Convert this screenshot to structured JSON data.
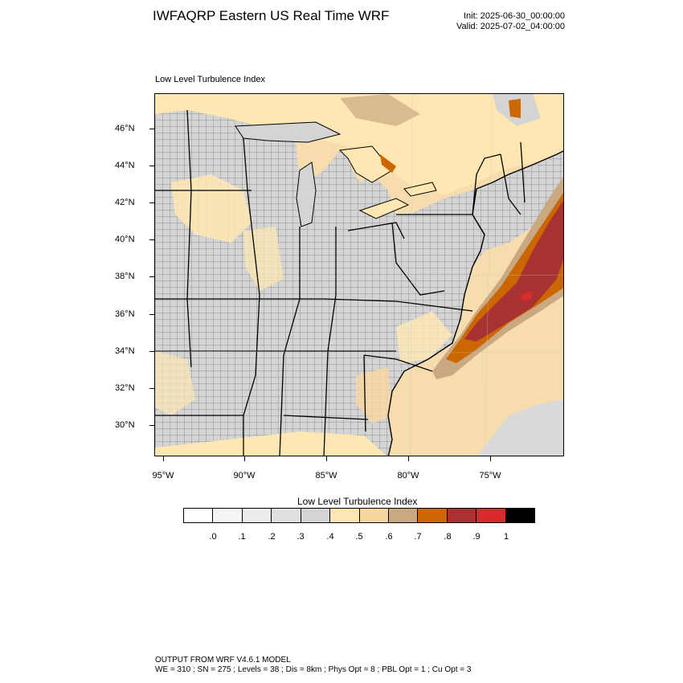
{
  "header": {
    "title": "IWFAQRP Eastern US Real Time WRF",
    "init": "Init: 2025-06-30_00:00:00",
    "valid": "Valid: 2025-07-02_04:00:00"
  },
  "map": {
    "subtitle": "Low Level Turbulence Index",
    "field": "Low Level Turbulence Index",
    "lat_labels": [
      "46°N",
      "44°N",
      "42°N",
      "40°N",
      "38°N",
      "36°N",
      "34°N",
      "32°N",
      "30°N"
    ],
    "lon_labels": [
      "95°W",
      "90°W",
      "85°W",
      "80°W",
      "75°W"
    ],
    "region": "Eastern United States",
    "max_area": "offshore Atlantic east of North Carolina and Virginia"
  },
  "colorbar": {
    "title": "Low Level Turbulence Index",
    "labels": [
      ".0",
      ".1",
      ".2",
      ".3",
      ".4",
      ".5",
      ".6",
      ".7",
      ".8",
      ".9",
      "1"
    ],
    "colors": [
      "#ffffff",
      "#f5f5f5",
      "#ececec",
      "#e0e0e0",
      "#d4d4d4",
      "#ffe7b3",
      "#f7d7a0",
      "#c9a882",
      "#cc6600",
      "#a83232",
      "#d92b2b",
      "#000000"
    ]
  },
  "footer": {
    "line1": "OUTPUT FROM WRF V4.6.1 MODEL",
    "line2": "WE = 310 ; SN = 275 ; Levels = 38 ; Dis = 8km ; Phys Opt = 8 ; PBL Opt = 1 ; Cu Opt = 3"
  }
}
